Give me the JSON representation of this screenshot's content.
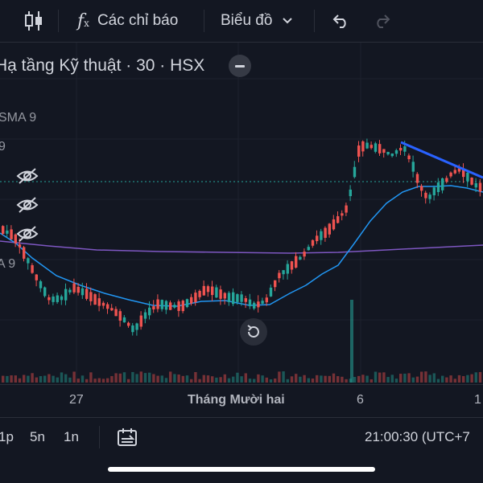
{
  "toolbar": {
    "indicators_label": "Các chỉ báo",
    "chart_type_label": "Biểu đồ"
  },
  "chart": {
    "symbol_title": "Hạ tầng Kỹ thuật · 30 · HSX",
    "indicator_1": "SMA 9",
    "indicator_1_value": "9",
    "indicator_2": "A 9"
  },
  "time_axis": {
    "labels": [
      "27",
      "Tháng Mười hai",
      "6",
      "1"
    ]
  },
  "bottom_bar": {
    "intervals": [
      "1p",
      "5n",
      "1n"
    ],
    "clock": "21:00:30 (UTC+7"
  },
  "colors": {
    "background": "#131722",
    "up": "#26a69a",
    "down": "#ef5350",
    "sma_fast": "#2196f3",
    "sma_slow": "#7e57c2",
    "trendline": "#2962ff"
  }
}
